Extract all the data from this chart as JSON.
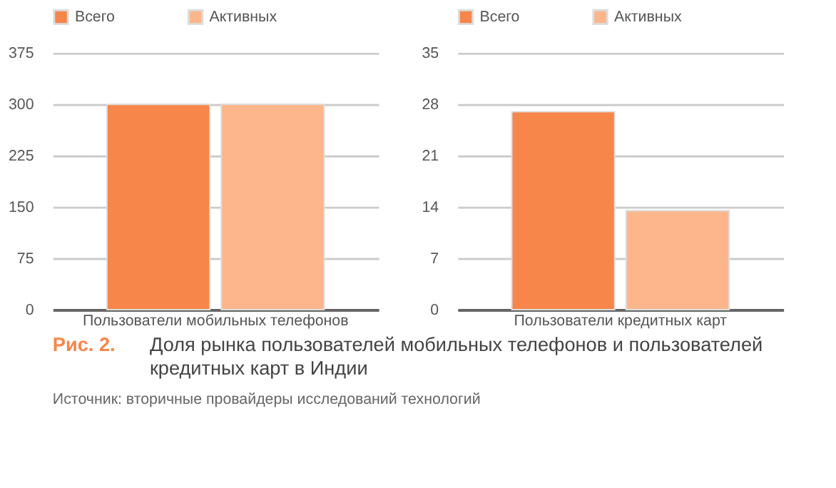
{
  "chart_data": [
    {
      "type": "bar",
      "categories": [
        "Пользователи мобильных телефонов"
      ],
      "series": [
        {
          "name": "Всего",
          "color": "#f6864a",
          "values": [
            300
          ]
        },
        {
          "name": "Активных",
          "color": "#fdb68b",
          "values": [
            300
          ]
        }
      ],
      "ylim": [
        0,
        375
      ],
      "yticks": [
        0,
        75,
        150,
        225,
        300,
        375
      ],
      "grid": "y",
      "legend": "top",
      "annotations": [
        "Рис. 2.",
        "Доля рынка пользователей мобильных телефонов и пользователей кредитных карт в Индии",
        "Источник: вторичные провайдеры исследований технологий"
      ]
    },
    {
      "type": "bar",
      "categories": [
        "Пользователи кредитных карт"
      ],
      "series": [
        {
          "name": "Всего",
          "color": "#f6864a",
          "values": [
            27
          ]
        },
        {
          "name": "Активных",
          "color": "#fdb68b",
          "values": [
            13.5
          ]
        }
      ],
      "ylim": [
        0,
        35
      ],
      "yticks": [
        0,
        7,
        14,
        21,
        28,
        35
      ],
      "grid": "y",
      "legend": "top"
    }
  ]
}
